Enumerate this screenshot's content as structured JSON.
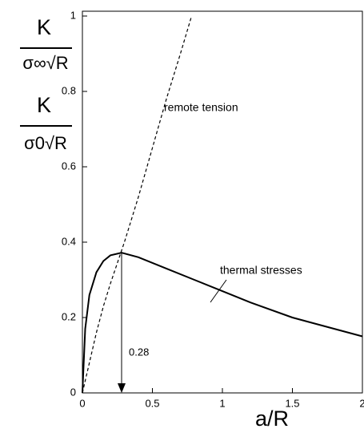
{
  "chart_data": {
    "type": "line",
    "xlabel": "a/R",
    "ylabels": [
      {
        "numerator": "K",
        "denominator": "σ∞√R"
      },
      {
        "numerator": "K",
        "denominator": "σ0√R"
      }
    ],
    "xlim": [
      0,
      2
    ],
    "ylim": [
      0,
      1
    ],
    "xticks": [
      0,
      0.5,
      1,
      1.5,
      2
    ],
    "yticks": [
      0,
      0.2,
      0.4,
      0.6,
      0.8,
      1
    ],
    "series": [
      {
        "name": "remote tension",
        "color": "#000",
        "dash": true,
        "x": [
          0,
          0.05,
          0.1,
          0.15,
          0.2,
          0.3,
          0.4,
          0.5,
          0.6,
          0.7,
          0.78
        ],
        "values": [
          0,
          0.08,
          0.16,
          0.23,
          0.29,
          0.4,
          0.52,
          0.65,
          0.78,
          0.9,
          1.0
        ]
      },
      {
        "name": "thermal stresses",
        "color": "#000",
        "dash": false,
        "x": [
          0,
          0.02,
          0.05,
          0.1,
          0.15,
          0.2,
          0.28,
          0.4,
          0.6,
          0.8,
          1,
          1.2,
          1.5,
          1.8,
          2
        ],
        "values": [
          0,
          0.17,
          0.26,
          0.32,
          0.35,
          0.365,
          0.372,
          0.36,
          0.33,
          0.3,
          0.27,
          0.24,
          0.2,
          0.17,
          0.15
        ]
      }
    ],
    "annotation": {
      "text": "0.28",
      "x": 0.28
    }
  }
}
